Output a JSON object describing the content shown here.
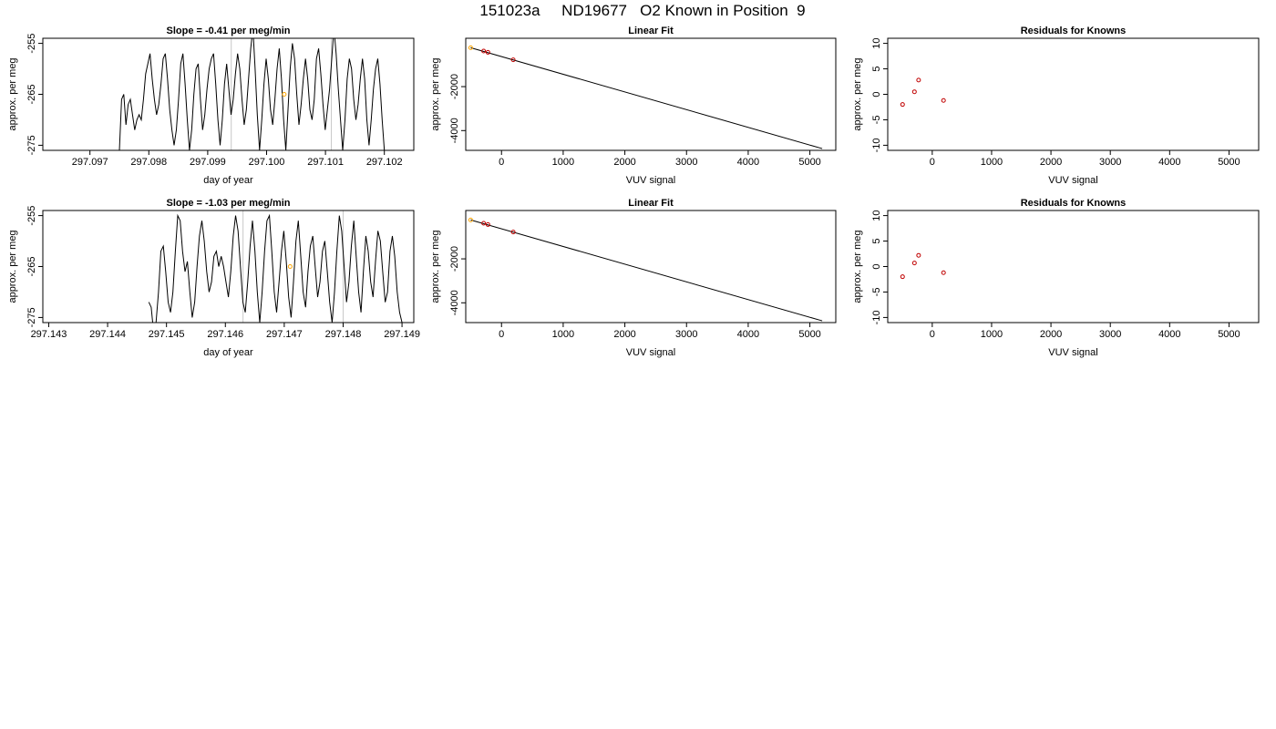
{
  "page_title": "151023a     ND19677   O2 Known in Position  9",
  "chart_data": [
    {
      "type": "line",
      "panel": "time-series-1",
      "title": "Slope =  -0.41  per meg/min",
      "xlabel": "day of year",
      "ylabel": "approx. per meg",
      "xlim": [
        297.0962,
        297.1025
      ],
      "ylim": [
        -276,
        -254
      ],
      "xticks": [
        "297.097",
        "297.098",
        "297.099",
        "297.100",
        "297.101",
        "297.102"
      ],
      "yticks": [
        "-255",
        "-265",
        "-275"
      ],
      "vlines": [
        297.0994,
        297.1011
      ],
      "marker": {
        "x": 297.1003,
        "y": -265,
        "color": "#ffa500"
      },
      "series": [
        {
          "x_start": 297.0975,
          "x_end": 297.102,
          "values": [
            -276,
            -266,
            -265,
            -271,
            -267,
            -266,
            -269,
            -272,
            -270,
            -269,
            -270,
            -266,
            -261,
            -259,
            -257,
            -262,
            -266,
            -269,
            -267,
            -263,
            -258,
            -257,
            -262,
            -268,
            -272,
            -275,
            -272,
            -266,
            -259,
            -257,
            -263,
            -270,
            -276,
            -272,
            -265,
            -260,
            -259,
            -266,
            -272,
            -269,
            -264,
            -260,
            -258,
            -257,
            -263,
            -270,
            -275,
            -270,
            -263,
            -259,
            -264,
            -269,
            -266,
            -261,
            -257,
            -260,
            -266,
            -271,
            -268,
            -262,
            -256,
            -252,
            -260,
            -269,
            -276,
            -270,
            -263,
            -258,
            -262,
            -268,
            -271,
            -266,
            -260,
            -256,
            -262,
            -270,
            -276,
            -268,
            -260,
            -255,
            -258,
            -265,
            -271,
            -267,
            -262,
            -258,
            -262,
            -268,
            -270,
            -266,
            -258,
            -256,
            -261,
            -267,
            -272,
            -268,
            -264,
            -258,
            -252,
            -257,
            -264,
            -270,
            -276,
            -270,
            -262,
            -258,
            -260,
            -266,
            -270,
            -267,
            -262,
            -258,
            -262,
            -270,
            -275,
            -270,
            -264,
            -260,
            -258,
            -263,
            -270,
            -276
          ],
          "color": "#000000"
        }
      ]
    },
    {
      "type": "scatter",
      "panel": "linear-fit-1",
      "title": "Linear Fit",
      "xlabel": "VUV signal",
      "ylabel": "approx. per meg",
      "xlim": [
        -580,
        5420
      ],
      "ylim": [
        -4900,
        200
      ],
      "xticks": [
        "0",
        "1000",
        "2000",
        "3000",
        "4000",
        "5000"
      ],
      "yticks": [
        "-2000",
        "-4000"
      ],
      "fit_line": {
        "x": [
          -500,
          5200
        ],
        "y": [
          -230,
          -4820
        ]
      },
      "points": [
        {
          "x": -500,
          "y": -230,
          "color": "#ffa500"
        },
        {
          "x": -290,
          "y": -380,
          "color": "#c00000"
        },
        {
          "x": -220,
          "y": -440,
          "color": "#c00000"
        },
        {
          "x": 190,
          "y": -780,
          "color": "#c00000"
        }
      ]
    },
    {
      "type": "scatter",
      "panel": "residuals-1",
      "title": "Residuals for Knowns",
      "xlabel": "VUV signal",
      "ylabel": "approx. per meg",
      "xlim": [
        -750,
        5500
      ],
      "ylim": [
        -11,
        11
      ],
      "xticks": [
        "0",
        "1000",
        "2000",
        "3000",
        "4000",
        "5000"
      ],
      "yticks": [
        "10",
        "5",
        "0",
        "-5",
        "-10"
      ],
      "points": [
        {
          "x": -500,
          "y": -2.0,
          "color": "#c00000"
        },
        {
          "x": -300,
          "y": 0.5,
          "color": "#c00000"
        },
        {
          "x": -230,
          "y": 2.8,
          "color": "#c00000"
        },
        {
          "x": 190,
          "y": -1.2,
          "color": "#c00000"
        }
      ]
    },
    {
      "type": "line",
      "panel": "time-series-2",
      "title": "Slope =  -1.03  per meg/min",
      "xlabel": "day of year",
      "ylabel": "approx. per meg",
      "xlim": [
        297.1429,
        297.1492
      ],
      "ylim": [
        -276,
        -254
      ],
      "xticks": [
        "297.143",
        "297.144",
        "297.145",
        "297.146",
        "297.147",
        "297.148",
        "297.149"
      ],
      "yticks": [
        "-255",
        "-265",
        "-275"
      ],
      "vlines": [
        297.1463,
        297.148
      ],
      "marker": {
        "x": 297.1471,
        "y": -265,
        "color": "#ffa500"
      },
      "series": [
        {
          "x_start": 297.1447,
          "x_end": 297.149,
          "values": [
            -272,
            -273,
            -278,
            -276,
            -270,
            -262,
            -261,
            -266,
            -272,
            -274,
            -270,
            -262,
            -255,
            -256,
            -262,
            -266,
            -264,
            -270,
            -275,
            -272,
            -265,
            -259,
            -256,
            -260,
            -266,
            -270,
            -268,
            -263,
            -262,
            -265,
            -263,
            -265,
            -268,
            -271,
            -266,
            -259,
            -255,
            -258,
            -265,
            -272,
            -274,
            -268,
            -261,
            -256,
            -262,
            -270,
            -276,
            -270,
            -262,
            -256,
            -255,
            -262,
            -270,
            -274,
            -268,
            -262,
            -258,
            -264,
            -271,
            -275,
            -268,
            -260,
            -256,
            -263,
            -270,
            -273,
            -266,
            -261,
            -259,
            -265,
            -271,
            -268,
            -262,
            -260,
            -266,
            -272,
            -276,
            -270,
            -262,
            -255,
            -258,
            -265,
            -272,
            -268,
            -261,
            -256,
            -263,
            -270,
            -274,
            -266,
            -259,
            -262,
            -268,
            -271,
            -264,
            -258,
            -260,
            -266,
            -272,
            -270,
            -262,
            -259,
            -263,
            -270,
            -274,
            -276
          ],
          "color": "#000000"
        }
      ]
    },
    {
      "type": "scatter",
      "panel": "linear-fit-2",
      "title": "Linear Fit",
      "xlabel": "VUV signal",
      "ylabel": "approx. per meg",
      "xlim": [
        -580,
        5420
      ],
      "ylim": [
        -4900,
        200
      ],
      "xticks": [
        "0",
        "1000",
        "2000",
        "3000",
        "4000",
        "5000"
      ],
      "yticks": [
        "-2000",
        "-4000"
      ],
      "fit_line": {
        "x": [
          -500,
          5200
        ],
        "y": [
          -230,
          -4820
        ]
      },
      "points": [
        {
          "x": -500,
          "y": -230,
          "color": "#ffa500"
        },
        {
          "x": -290,
          "y": -380,
          "color": "#c00000"
        },
        {
          "x": -220,
          "y": -440,
          "color": "#c00000"
        },
        {
          "x": 190,
          "y": -780,
          "color": "#c00000"
        }
      ]
    },
    {
      "type": "scatter",
      "panel": "residuals-2",
      "title": "Residuals for Knowns",
      "xlabel": "VUV signal",
      "ylabel": "approx. per meg",
      "xlim": [
        -750,
        5500
      ],
      "ylim": [
        -11,
        11
      ],
      "xticks": [
        "0",
        "1000",
        "2000",
        "3000",
        "4000",
        "5000"
      ],
      "yticks": [
        "10",
        "5",
        "0",
        "-5",
        "-10"
      ],
      "points": [
        {
          "x": -500,
          "y": -2.0,
          "color": "#c00000"
        },
        {
          "x": -300,
          "y": 0.7,
          "color": "#c00000"
        },
        {
          "x": -230,
          "y": 2.2,
          "color": "#c00000"
        },
        {
          "x": 190,
          "y": -1.2,
          "color": "#c00000"
        }
      ]
    }
  ]
}
